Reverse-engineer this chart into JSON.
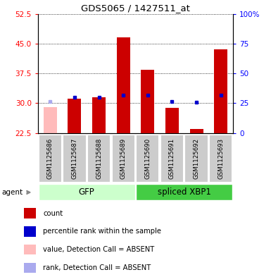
{
  "title": "GDS5065 / 1427511_at",
  "samples": [
    "GSM1125686",
    "GSM1125687",
    "GSM1125688",
    "GSM1125689",
    "GSM1125690",
    "GSM1125691",
    "GSM1125692",
    "GSM1125693"
  ],
  "count_values": [
    null,
    31.2,
    31.5,
    46.5,
    38.5,
    28.8,
    23.5,
    43.5
  ],
  "count_absent": [
    29.0,
    null,
    null,
    null,
    null,
    null,
    null,
    null
  ],
  "percentile_values": [
    null,
    31.5,
    31.5,
    32.0,
    32.0,
    null,
    null,
    32.0
  ],
  "percentile_absent": [
    30.5,
    null,
    null,
    null,
    null,
    null,
    null,
    null
  ],
  "percentile_standalone": [
    null,
    null,
    null,
    null,
    null,
    30.5,
    30.2,
    null
  ],
  "ylim_left": [
    22.5,
    52.5
  ],
  "ylim_right": [
    0,
    100
  ],
  "yticks_left": [
    22.5,
    30.0,
    37.5,
    45.0,
    52.5
  ],
  "yticks_right": [
    0,
    25,
    50,
    75,
    100
  ],
  "bar_color_red": "#cc0000",
  "bar_color_pink": "#ffbbbb",
  "dot_color_blue": "#0000cc",
  "dot_color_lightblue": "#aaaaee",
  "gfp_color_light": "#ccffcc",
  "xbp1_color": "#44cc44",
  "sample_box_color": "#cccccc",
  "legend_items": [
    {
      "label": "count",
      "color": "#cc0000"
    },
    {
      "label": "percentile rank within the sample",
      "color": "#0000cc"
    },
    {
      "label": "value, Detection Call = ABSENT",
      "color": "#ffbbbb"
    },
    {
      "label": "rank, Detection Call = ABSENT",
      "color": "#aaaaee"
    }
  ]
}
